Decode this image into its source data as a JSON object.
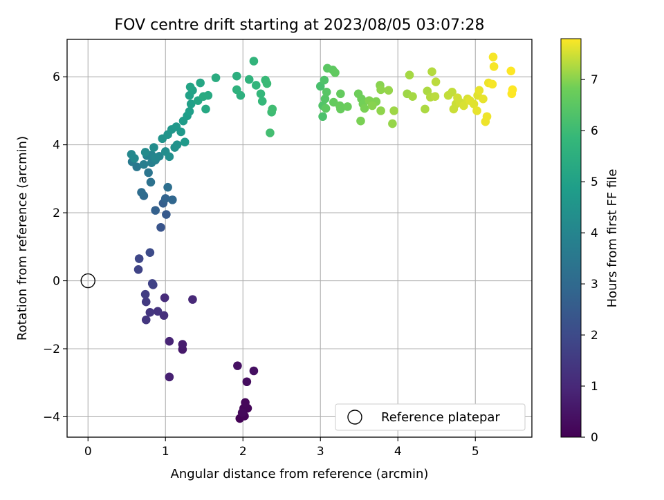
{
  "chart_data": {
    "type": "scatter",
    "title": "FOV centre drift starting at 2023/08/05 03:07:28",
    "xlabel": "Angular distance from reference (arcmin)",
    "ylabel": "Rotation from reference (arcmin)",
    "xlim": [
      -0.27,
      5.73
    ],
    "ylim": [
      -4.6,
      7.1
    ],
    "xticks": [
      0,
      1,
      2,
      3,
      4,
      5
    ],
    "yticks": [
      -4,
      -2,
      0,
      2,
      4,
      6
    ],
    "grid": true,
    "colormap": "viridis",
    "colorbar": {
      "label": "Hours from first FF file",
      "range": [
        0,
        7.8
      ],
      "ticks": [
        0,
        1,
        2,
        3,
        4,
        5,
        6,
        7
      ]
    },
    "legend": {
      "placement": "lower-right",
      "entries": [
        "Reference platepar"
      ]
    },
    "reference_point": {
      "x": 0,
      "y": 0,
      "label": "Reference platepar"
    },
    "series": [
      {
        "points": [
          [
            1.96,
            -4.05,
            0.05
          ],
          [
            2.02,
            -3.98,
            0.08
          ],
          [
            2.06,
            -3.75,
            0.1
          ],
          [
            2.01,
            -3.75,
            0.12
          ],
          [
            2.03,
            -3.58,
            0.15
          ],
          [
            1.99,
            -3.88,
            0.2
          ],
          [
            2.05,
            -2.97,
            0.3
          ],
          [
            2.14,
            -2.65,
            0.35
          ],
          [
            1.93,
            -2.5,
            0.4
          ],
          [
            1.22,
            -2.02,
            0.6
          ],
          [
            1.22,
            -1.87,
            0.7
          ],
          [
            1.05,
            -2.83,
            0.8
          ],
          [
            1.05,
            -1.78,
            0.9
          ],
          [
            1.35,
            -0.55,
            1.0
          ],
          [
            0.99,
            -0.5,
            1.1
          ],
          [
            0.98,
            -1.02,
            1.2
          ],
          [
            0.9,
            -0.9,
            1.3
          ],
          [
            0.8,
            -0.93,
            1.35
          ],
          [
            0.75,
            -1.15,
            1.4
          ],
          [
            0.75,
            -0.62,
            1.5
          ],
          [
            0.74,
            -0.4,
            1.6
          ],
          [
            0.84,
            -0.12,
            1.7
          ],
          [
            0.83,
            -0.08,
            1.75
          ],
          [
            0.65,
            0.33,
            1.8
          ],
          [
            0.66,
            0.65,
            1.9
          ],
          [
            0.8,
            0.83,
            2.0
          ],
          [
            0.94,
            1.57,
            2.3
          ],
          [
            1.01,
            1.95,
            2.5
          ],
          [
            0.97,
            2.28,
            2.6
          ],
          [
            0.87,
            2.07,
            2.7
          ],
          [
            1.0,
            2.42,
            2.8
          ],
          [
            1.09,
            2.38,
            2.9
          ],
          [
            0.72,
            2.5,
            3.0
          ],
          [
            0.69,
            2.6,
            3.1
          ],
          [
            1.03,
            2.75,
            3.2
          ],
          [
            0.81,
            2.9,
            3.3
          ],
          [
            0.78,
            3.18,
            3.4
          ],
          [
            0.63,
            3.35,
            3.5
          ],
          [
            0.57,
            3.5,
            3.6
          ],
          [
            0.72,
            3.42,
            3.7
          ],
          [
            0.82,
            3.47,
            3.8
          ],
          [
            0.87,
            3.55,
            3.85
          ],
          [
            0.76,
            3.68,
            3.9
          ],
          [
            0.82,
            3.7,
            3.95
          ],
          [
            0.92,
            3.66,
            4.0
          ],
          [
            0.87,
            3.62,
            4.05
          ],
          [
            0.56,
            3.72,
            4.1
          ],
          [
            0.6,
            3.6,
            4.15
          ],
          [
            0.74,
            3.78,
            4.2
          ],
          [
            0.85,
            3.92,
            4.25
          ],
          [
            1.0,
            3.8,
            4.3
          ],
          [
            1.05,
            3.65,
            4.35
          ],
          [
            1.12,
            3.92,
            4.4
          ],
          [
            1.15,
            4.0,
            4.45
          ],
          [
            0.96,
            4.18,
            4.5
          ],
          [
            1.03,
            4.3,
            4.55
          ],
          [
            1.08,
            4.45,
            4.6
          ],
          [
            1.14,
            4.53,
            4.65
          ],
          [
            1.2,
            4.38,
            4.7
          ],
          [
            1.25,
            4.08,
            4.75
          ],
          [
            1.23,
            4.7,
            4.8
          ],
          [
            1.28,
            4.85,
            4.85
          ],
          [
            1.31,
            4.98,
            4.9
          ],
          [
            1.33,
            5.2,
            4.95
          ],
          [
            1.31,
            5.45,
            5.0
          ],
          [
            1.35,
            5.6,
            5.05
          ],
          [
            1.32,
            5.7,
            5.1
          ],
          [
            1.42,
            5.3,
            5.15
          ],
          [
            1.45,
            5.82,
            5.2
          ],
          [
            1.52,
            5.05,
            5.25
          ],
          [
            1.55,
            5.45,
            5.3
          ],
          [
            1.49,
            5.42,
            5.35
          ],
          [
            1.65,
            5.97,
            5.4
          ],
          [
            1.92,
            6.02,
            5.5
          ],
          [
            1.97,
            5.45,
            5.55
          ],
          [
            1.92,
            5.62,
            5.6
          ],
          [
            2.08,
            5.92,
            5.65
          ],
          [
            2.14,
            6.46,
            5.7
          ],
          [
            2.17,
            5.75,
            5.75
          ],
          [
            2.23,
            5.5,
            5.8
          ],
          [
            2.25,
            5.28,
            5.85
          ],
          [
            2.29,
            5.9,
            5.9
          ],
          [
            2.31,
            5.8,
            5.95
          ],
          [
            2.37,
            4.96,
            6.0
          ],
          [
            2.38,
            5.05,
            6.05
          ],
          [
            2.35,
            4.35,
            6.1
          ],
          [
            3.0,
            5.72,
            6.2
          ],
          [
            3.03,
            4.83,
            6.25
          ],
          [
            3.05,
            5.9,
            6.3
          ],
          [
            3.03,
            5.15,
            6.35
          ],
          [
            3.06,
            5.35,
            6.4
          ],
          [
            3.08,
            5.55,
            6.45
          ],
          [
            3.09,
            6.25,
            6.5
          ],
          [
            3.07,
            5.07,
            6.55
          ],
          [
            3.16,
            6.2,
            6.55
          ],
          [
            3.19,
            6.12,
            6.6
          ],
          [
            3.17,
            5.25,
            6.65
          ],
          [
            3.26,
            5.5,
            6.65
          ],
          [
            3.25,
            5.15,
            6.7
          ],
          [
            3.26,
            5.05,
            6.7
          ],
          [
            3.35,
            5.12,
            6.75
          ],
          [
            3.49,
            5.5,
            6.8
          ],
          [
            3.53,
            5.35,
            6.8
          ],
          [
            3.55,
            5.2,
            6.85
          ],
          [
            3.52,
            4.7,
            6.9
          ],
          [
            3.57,
            5.07,
            6.9
          ],
          [
            3.63,
            5.3,
            6.95
          ],
          [
            3.72,
            5.27,
            6.95
          ],
          [
            3.67,
            5.15,
            7.0
          ],
          [
            3.77,
            5.75,
            7.0
          ],
          [
            3.78,
            5.62,
            7.05
          ],
          [
            3.78,
            5.0,
            7.05
          ],
          [
            3.88,
            5.6,
            7.1
          ],
          [
            3.93,
            4.62,
            7.1
          ],
          [
            3.95,
            5.0,
            7.15
          ],
          [
            4.12,
            5.5,
            7.15
          ],
          [
            4.15,
            6.05,
            7.2
          ],
          [
            4.19,
            5.42,
            7.2
          ],
          [
            4.35,
            5.05,
            7.25
          ],
          [
            4.38,
            5.58,
            7.25
          ],
          [
            4.42,
            5.4,
            7.3
          ],
          [
            4.44,
            6.15,
            7.3
          ],
          [
            4.49,
            5.85,
            7.35
          ],
          [
            4.48,
            5.42,
            7.35
          ],
          [
            4.65,
            5.45,
            7.4
          ],
          [
            4.7,
            5.55,
            7.4
          ],
          [
            4.72,
            5.05,
            7.45
          ],
          [
            4.75,
            5.2,
            7.45
          ],
          [
            4.77,
            5.38,
            7.5
          ],
          [
            4.8,
            5.25,
            7.5
          ],
          [
            4.85,
            5.15,
            7.55
          ],
          [
            4.9,
            5.35,
            7.55
          ],
          [
            4.93,
            5.3,
            7.6
          ],
          [
            4.98,
            5.2,
            7.6
          ],
          [
            5.03,
            5.45,
            7.6
          ],
          [
            5.05,
            5.6,
            7.65
          ],
          [
            5.02,
            5.0,
            7.65
          ],
          [
            5.1,
            5.35,
            7.65
          ],
          [
            5.13,
            4.68,
            7.7
          ],
          [
            5.15,
            4.83,
            7.7
          ],
          [
            5.17,
            5.82,
            7.7
          ],
          [
            5.22,
            5.78,
            7.75
          ],
          [
            5.23,
            6.58,
            7.75
          ],
          [
            5.24,
            6.3,
            7.75
          ],
          [
            5.46,
            6.17,
            7.8
          ],
          [
            5.47,
            5.5,
            7.8
          ],
          [
            5.48,
            5.62,
            7.8
          ]
        ]
      }
    ]
  }
}
